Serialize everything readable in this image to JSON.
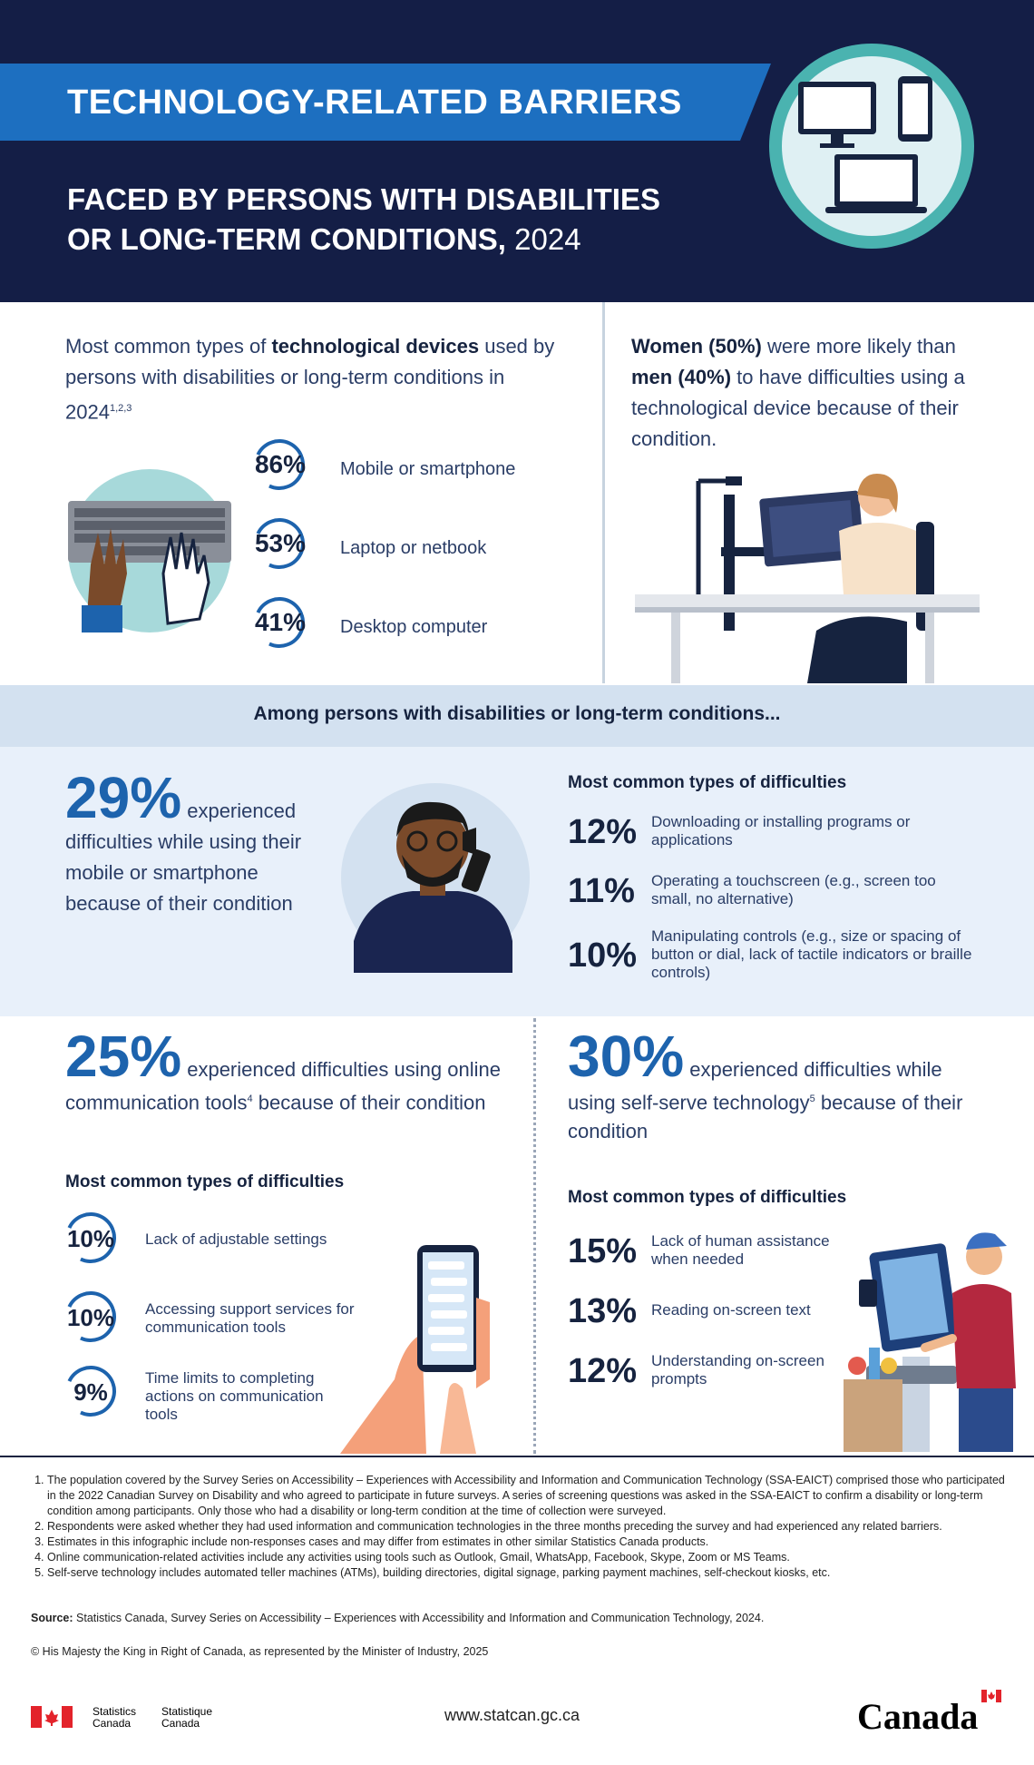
{
  "header": {
    "title_line1": "TECHNOLOGY-RELATED BARRIERS",
    "title_line2": "FACED BY PERSONS WITH DISABILITIES",
    "title_line3": "OR LONG-TERM CONDITIONS,",
    "title_year": "2024"
  },
  "devices": {
    "lead_pre": "Most common types of",
    "lead_bold": "technological devices",
    "lead_post": "used by persons with disabilities or long-term conditions in 2024",
    "lead_sup": "1,2,3",
    "items": [
      {
        "pct": "86%",
        "label": "Mobile or smartphone"
      },
      {
        "pct": "53%",
        "label": "Laptop or netbook"
      },
      {
        "pct": "41%",
        "label": "Desktop computer"
      }
    ]
  },
  "gender": {
    "women": "Women (50%)",
    "mid1": "were more likely than",
    "men": "men (40%)",
    "rest": "to have difficulties using a technological device because of their condition."
  },
  "band": {
    "text": "Among persons with disabilities or long-term conditions..."
  },
  "mobile": {
    "pct": "29%",
    "text1": "experienced",
    "text2": "difficulties while using their mobile or smartphone because of their condition",
    "heading": "Most common types of difficulties",
    "items": [
      {
        "pct": "12%",
        "label": "Downloading or installing programs or applications"
      },
      {
        "pct": "11%",
        "label": "Operating a touchscreen (e.g., screen too small, no alternative)"
      },
      {
        "pct": "10%",
        "label": "Manipulating controls (e.g., size or spacing of button or dial, lack of tactile indicators or braille controls)"
      }
    ]
  },
  "online": {
    "pct": "25%",
    "text1": "experienced difficulties using",
    "text2a": "online communication tools",
    "sup": "4",
    "text2b": "because of their condition",
    "heading": "Most common types of difficulties",
    "items": [
      {
        "pct": "10%",
        "label": "Lack of adjustable settings"
      },
      {
        "pct": "10%",
        "label": "Accessing support services for communication tools"
      },
      {
        "pct": "9%",
        "label": "Time limits to completing actions on communication tools"
      }
    ]
  },
  "selfserve": {
    "pct": "30%",
    "text1": "experienced difficulties",
    "text2a": "while using self-serve technology",
    "sup": "5",
    "text2b": "because of their condition",
    "heading": "Most common types of difficulties",
    "items": [
      {
        "pct": "15%",
        "label": "Lack of human assistance when needed"
      },
      {
        "pct": "13%",
        "label": "Reading on-screen text"
      },
      {
        "pct": "12%",
        "label": "Understanding on-screen prompts"
      }
    ]
  },
  "footnotes": [
    "The population covered by the Survey Series on Accessibility – Experiences with Accessibility and Information and Communication Technology (SSA-EAICT) comprised those who participated in the 2022 Canadian Survey on Disability and who agreed to participate in future surveys. A series of screening questions was asked in the SSA-EAICT to confirm a disability or long-term condition among participants. Only those who had a disability or long-term condition at the time of collection were surveyed.",
    "Respondents were asked whether they had used information and communication technologies in the three months preceding the survey and had experienced any related barriers.",
    "Estimates in this infographic include non-responses cases and may differ from estimates in other similar Statistics Canada products.",
    "Online communication-related activities include any activities using tools such as Outlook, Gmail, WhatsApp, Facebook, Skype, Zoom or MS Teams.",
    "Self-serve technology includes automated teller machines (ATMs), building directories, digital signage, parking payment machines, self-checkout kiosks, etc."
  ],
  "source": {
    "label": "Source:",
    "text": "Statistics Canada, Survey Series on Accessibility – Experiences with Accessibility and Information and Communication Technology, 2024."
  },
  "copyright": "© His Majesty the King in Right of Canada, as represented by the Minister of Industry, 2025",
  "footer": {
    "sc_en1": "Statistics",
    "sc_en2": "Canada",
    "sc_fr1": "Statistique",
    "sc_fr2": "Canada",
    "url": "www.statcan.gc.ca",
    "wordmark": "Canada"
  },
  "colors": {
    "navy": "#141e46",
    "blue": "#1d63ad",
    "teal": "#4ab3b0",
    "band": "#d3e1f0",
    "panel": "#e8f0fa"
  }
}
